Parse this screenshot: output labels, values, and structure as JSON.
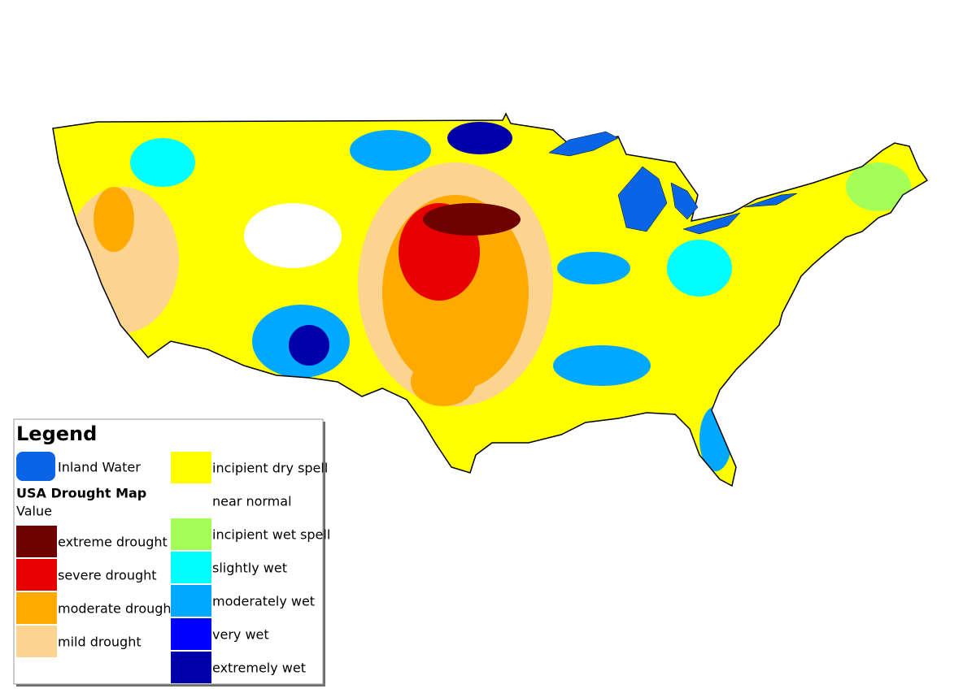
{
  "legend": {
    "title": "Legend",
    "inland_water": {
      "label": "Inland Water",
      "color": "#0a64e6"
    },
    "map_title": "USA Drought Map",
    "value_label": "Value",
    "classes": [
      {
        "label": "extreme drought",
        "color": "#6e0000"
      },
      {
        "label": "severe drought",
        "color": "#e60000"
      },
      {
        "label": "moderate drought",
        "color": "#ffaa00"
      },
      {
        "label": "mild drought",
        "color": "#fcd38f"
      },
      {
        "label": "incipient dry spell",
        "color": "#ffff00"
      },
      {
        "label": "near normal",
        "color": "#ffffff"
      },
      {
        "label": "incipient wet spell",
        "color": "#a3ff55"
      },
      {
        "label": "slightly wet",
        "color": "#00ffff"
      },
      {
        "label": "moderately wet",
        "color": "#00a8ff"
      },
      {
        "label": "very wet",
        "color": "#0000ff"
      },
      {
        "label": "extremely wet",
        "color": "#0000aa"
      }
    ]
  }
}
